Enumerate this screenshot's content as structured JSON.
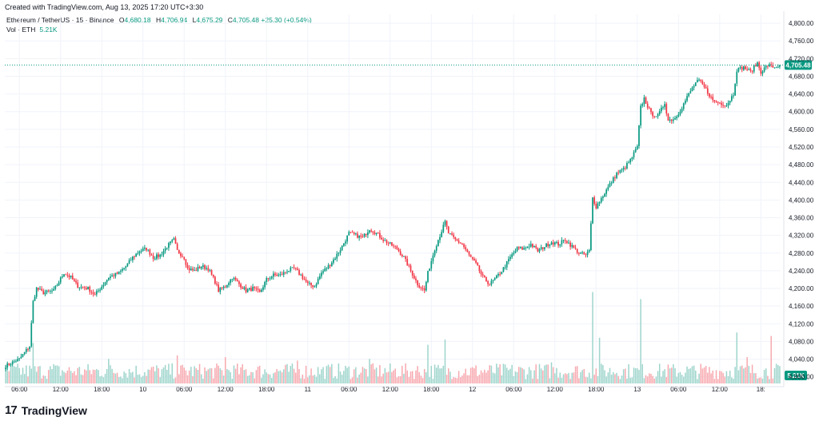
{
  "header": {
    "created_with": "Created with TradingView.com, Aug 13, 2025 17:20 UTC+3:30",
    "symbol": "Ethereum / TetherUS · 15 · Binance",
    "open_label": "O",
    "open": "4,680.18",
    "high_label": "H",
    "high": "4,706.94",
    "low_label": "L",
    "low": "4,675.29",
    "close_label": "C",
    "close": "4,705.48",
    "change": "+25.30 (+0.54%)",
    "volume_label": "Vol · ETH",
    "volume_value": "5.21K"
  },
  "brand": {
    "logo": "17",
    "name": "TradingView"
  },
  "colors": {
    "up": "#089981",
    "down": "#F23645",
    "vol_up": "#9ED5CC",
    "vol_down": "#F7A9AF",
    "grid": "#F0F3FA",
    "axis_text": "#131722"
  },
  "chart_data": {
    "type": "candlestick",
    "interval": "15",
    "ylim": [
      3985,
      4820
    ],
    "y_ticks": [
      "4,000.00",
      "4,040.00",
      "4,080.00",
      "4,120.00",
      "4,160.00",
      "4,200.00",
      "4,240.00",
      "4,280.00",
      "4,320.00",
      "4,360.00",
      "4,400.00",
      "4,440.00",
      "4,480.00",
      "4,520.00",
      "4,560.00",
      "4,600.00",
      "4,640.00",
      "4,680.00",
      "4,720.00",
      "4,760.00",
      "4,800.00"
    ],
    "x_ticks": [
      "06:00",
      "12:00",
      "18:00",
      "10",
      "06:00",
      "12:00",
      "18:00",
      "11",
      "06:00",
      "12:00",
      "18:00",
      "12",
      "06:00",
      "12:00",
      "18:00",
      "13",
      "06:00",
      "12:00",
      "18:"
    ],
    "x_tick_bars": [
      8,
      32,
      56,
      80,
      104,
      128,
      152,
      176,
      200,
      224,
      248,
      272,
      296,
      320,
      344,
      368,
      392,
      416,
      440
    ],
    "last_price": 4705.48,
    "last_price_label": "4,705.48",
    "last_volume_label": "5.21K",
    "bars": 452,
    "close_anchors": [
      [
        0,
        4025
      ],
      [
        8,
        4040
      ],
      [
        14,
        4070
      ],
      [
        16,
        4170
      ],
      [
        18,
        4200
      ],
      [
        22,
        4190
      ],
      [
        28,
        4195
      ],
      [
        34,
        4235
      ],
      [
        38,
        4225
      ],
      [
        42,
        4205
      ],
      [
        48,
        4200
      ],
      [
        52,
        4185
      ],
      [
        56,
        4205
      ],
      [
        60,
        4225
      ],
      [
        66,
        4235
      ],
      [
        70,
        4250
      ],
      [
        74,
        4270
      ],
      [
        78,
        4285
      ],
      [
        82,
        4290
      ],
      [
        86,
        4270
      ],
      [
        90,
        4275
      ],
      [
        94,
        4295
      ],
      [
        98,
        4310
      ],
      [
        100,
        4285
      ],
      [
        104,
        4270
      ],
      [
        106,
        4245
      ],
      [
        110,
        4240
      ],
      [
        114,
        4250
      ],
      [
        118,
        4245
      ],
      [
        122,
        4215
      ],
      [
        124,
        4195
      ],
      [
        128,
        4205
      ],
      [
        132,
        4225
      ],
      [
        136,
        4210
      ],
      [
        140,
        4195
      ],
      [
        144,
        4200
      ],
      [
        148,
        4190
      ],
      [
        152,
        4220
      ],
      [
        156,
        4230
      ],
      [
        160,
        4230
      ],
      [
        164,
        4240
      ],
      [
        168,
        4245
      ],
      [
        172,
        4230
      ],
      [
        176,
        4210
      ],
      [
        180,
        4205
      ],
      [
        184,
        4235
      ],
      [
        188,
        4250
      ],
      [
        192,
        4270
      ],
      [
        196,
        4295
      ],
      [
        200,
        4325
      ],
      [
        204,
        4320
      ],
      [
        208,
        4315
      ],
      [
        212,
        4335
      ],
      [
        216,
        4325
      ],
      [
        220,
        4310
      ],
      [
        224,
        4300
      ],
      [
        228,
        4290
      ],
      [
        232,
        4270
      ],
      [
        236,
        4240
      ],
      [
        240,
        4210
      ],
      [
        244,
        4195
      ],
      [
        246,
        4235
      ],
      [
        250,
        4290
      ],
      [
        254,
        4330
      ],
      [
        256,
        4350
      ],
      [
        258,
        4325
      ],
      [
        262,
        4310
      ],
      [
        266,
        4300
      ],
      [
        270,
        4275
      ],
      [
        274,
        4255
      ],
      [
        278,
        4225
      ],
      [
        282,
        4210
      ],
      [
        286,
        4225
      ],
      [
        290,
        4245
      ],
      [
        294,
        4270
      ],
      [
        298,
        4290
      ],
      [
        302,
        4290
      ],
      [
        306,
        4300
      ],
      [
        310,
        4285
      ],
      [
        314,
        4295
      ],
      [
        318,
        4305
      ],
      [
        322,
        4300
      ],
      [
        326,
        4310
      ],
      [
        330,
        4295
      ],
      [
        334,
        4280
      ],
      [
        338,
        4275
      ],
      [
        340,
        4285
      ],
      [
        342,
        4405
      ],
      [
        344,
        4385
      ],
      [
        348,
        4410
      ],
      [
        352,
        4435
      ],
      [
        356,
        4460
      ],
      [
        360,
        4470
      ],
      [
        364,
        4490
      ],
      [
        368,
        4520
      ],
      [
        370,
        4610
      ],
      [
        372,
        4630
      ],
      [
        376,
        4595
      ],
      [
        380,
        4590
      ],
      [
        384,
        4620
      ],
      [
        386,
        4580
      ],
      [
        390,
        4585
      ],
      [
        394,
        4610
      ],
      [
        398,
        4640
      ],
      [
        402,
        4665
      ],
      [
        404,
        4670
      ],
      [
        408,
        4650
      ],
      [
        412,
        4625
      ],
      [
        416,
        4620
      ],
      [
        420,
        4615
      ],
      [
        424,
        4640
      ],
      [
        426,
        4695
      ],
      [
        430,
        4700
      ],
      [
        434,
        4690
      ],
      [
        438,
        4710
      ],
      [
        440,
        4690
      ],
      [
        444,
        4705
      ],
      [
        448,
        4700
      ],
      [
        451,
        4705.48
      ]
    ],
    "volume_spikes": [
      [
        16,
        2.3
      ],
      [
        28,
        1.1
      ],
      [
        60,
        1.4
      ],
      [
        100,
        1.6
      ],
      [
        128,
        1.5
      ],
      [
        170,
        1.3
      ],
      [
        212,
        1.4
      ],
      [
        246,
        2.2
      ],
      [
        256,
        2.5
      ],
      [
        318,
        1.2
      ],
      [
        342,
        5.2
      ],
      [
        346,
        2.6
      ],
      [
        370,
        4.8
      ],
      [
        426,
        2.9
      ],
      [
        432,
        1.5
      ],
      [
        446,
        2.7
      ]
    ]
  }
}
